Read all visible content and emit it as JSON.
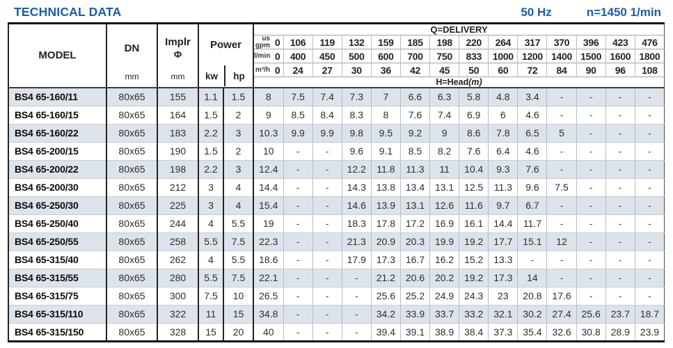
{
  "header": {
    "title": "TECHNICAL DATA",
    "frequency": "50 Hz",
    "speed": "n=1450 1/min"
  },
  "colors": {
    "accent_blue": "#1b5ea9",
    "row_shade": "#dce3ea"
  },
  "table": {
    "delivery_title": "Q=DELIVERY",
    "head_label": "H=Head",
    "head_unit": "(m)",
    "columns": {
      "model": "MODEL",
      "dn": "DN",
      "dn_unit": "mm",
      "implr": "Implr",
      "implr_phi": "Φ",
      "implr_unit": "mm",
      "power": "Power",
      "kw": "kw",
      "hp": "hp"
    },
    "delivery_rows": [
      {
        "unit_lines": [
          "us",
          "gpm"
        ],
        "values": [
          "0",
          "106",
          "119",
          "132",
          "159",
          "185",
          "198",
          "220",
          "264",
          "317",
          "370",
          "396",
          "423",
          "476"
        ]
      },
      {
        "unit_lines": [
          "l/min"
        ],
        "values": [
          "0",
          "400",
          "450",
          "500",
          "600",
          "700",
          "750",
          "833",
          "1000",
          "1200",
          "1400",
          "1500",
          "1600",
          "1800"
        ]
      },
      {
        "unit_lines": [
          "m³/h"
        ],
        "values": [
          "0",
          "24",
          "27",
          "30",
          "36",
          "42",
          "45",
          "50",
          "60",
          "72",
          "84",
          "90",
          "96",
          "108"
        ]
      }
    ],
    "rows": [
      {
        "model": "BS4 65-160/11",
        "dn": "80x65",
        "implr": "155",
        "kw": "1.1",
        "hp": "1.5",
        "head": [
          "8",
          "7.5",
          "7.4",
          "7.3",
          "7",
          "6.6",
          "6.3",
          "5.8",
          "4.8",
          "3.4",
          "-",
          "-",
          "-",
          "-"
        ]
      },
      {
        "model": "BS4 65-160/15",
        "dn": "80x65",
        "implr": "164",
        "kw": "1.5",
        "hp": "2",
        "head": [
          "9",
          "8.5",
          "8.4",
          "8.3",
          "8",
          "7.6",
          "7.4",
          "6.9",
          "6",
          "4.6",
          "-",
          "-",
          "-",
          "-"
        ]
      },
      {
        "model": "BS4 65-160/22",
        "dn": "80x65",
        "implr": "183",
        "kw": "2.2",
        "hp": "3",
        "head": [
          "10.3",
          "9.9",
          "9.9",
          "9.8",
          "9.5",
          "9.2",
          "9",
          "8.6",
          "7.8",
          "6.5",
          "5",
          "-",
          "-",
          "-"
        ]
      },
      {
        "model": "BS4 65-200/15",
        "dn": "80x65",
        "implr": "190",
        "kw": "1.5",
        "hp": "2",
        "head": [
          "10",
          "-",
          "-",
          "9.6",
          "9.1",
          "8.5",
          "8.2",
          "7.6",
          "6.4",
          "4.6",
          "-",
          "-",
          "-",
          "-"
        ]
      },
      {
        "model": "BS4 65-200/22",
        "dn": "80x65",
        "implr": "198",
        "kw": "2.2",
        "hp": "3",
        "head": [
          "12.4",
          "-",
          "-",
          "12.2",
          "11.8",
          "11.3",
          "11",
          "10.4",
          "9.3",
          "7.6",
          "-",
          "-",
          "-",
          "-"
        ]
      },
      {
        "model": "BS4 65-200/30",
        "dn": "80x65",
        "implr": "212",
        "kw": "3",
        "hp": "4",
        "head": [
          "14.4",
          "-",
          "-",
          "14.3",
          "13.8",
          "13.4",
          "13.1",
          "12.5",
          "11.3",
          "9.6",
          "7.5",
          "-",
          "-",
          "-"
        ]
      },
      {
        "model": "BS4 65-250/30",
        "dn": "80x65",
        "implr": "225",
        "kw": "3",
        "hp": "4",
        "head": [
          "15.4",
          "-",
          "-",
          "14.6",
          "13.9",
          "13.1",
          "12.6",
          "11.6",
          "9.7",
          "6.7",
          "-",
          "-",
          "-",
          "-"
        ]
      },
      {
        "model": "BS4 65-250/40",
        "dn": "80x65",
        "implr": "244",
        "kw": "4",
        "hp": "5.5",
        "head": [
          "19",
          "-",
          "-",
          "18.3",
          "17.8",
          "17.2",
          "16.9",
          "16.1",
          "14.4",
          "11.7",
          "-",
          "-",
          "-",
          "-"
        ]
      },
      {
        "model": "BS4 65-250/55",
        "dn": "80x65",
        "implr": "258",
        "kw": "5.5",
        "hp": "7.5",
        "head": [
          "22.3",
          "-",
          "-",
          "21.3",
          "20.9",
          "20.3",
          "19.9",
          "19.2",
          "17.7",
          "15.1",
          "12",
          "-",
          "-",
          "-"
        ]
      },
      {
        "model": "BS4 65-315/40",
        "dn": "80x65",
        "implr": "262",
        "kw": "4",
        "hp": "5.5",
        "head": [
          "18.6",
          "-",
          "-",
          "17.9",
          "17.3",
          "16.7",
          "16.2",
          "15.2",
          "13.3",
          "-",
          "-",
          "-",
          "-",
          "-"
        ]
      },
      {
        "model": "BS4 65-315/55",
        "dn": "80x65",
        "implr": "280",
        "kw": "5.5",
        "hp": "7.5",
        "head": [
          "22.1",
          "-",
          "-",
          "-",
          "21.2",
          "20.6",
          "20.2",
          "19.2",
          "17.3",
          "14",
          "-",
          "-",
          "-",
          "-"
        ]
      },
      {
        "model": "BS4 65-315/75",
        "dn": "80x65",
        "implr": "300",
        "kw": "7.5",
        "hp": "10",
        "head": [
          "26.5",
          "-",
          "-",
          "-",
          "25.6",
          "25.2",
          "24.9",
          "24.3",
          "23",
          "20.8",
          "17.6",
          "-",
          "-",
          "-"
        ]
      },
      {
        "model": "BS4 65-315/110",
        "dn": "80x65",
        "implr": "322",
        "kw": "11",
        "hp": "15",
        "head": [
          "34.8",
          "-",
          "-",
          "-",
          "34.2",
          "33.9",
          "33.7",
          "33.2",
          "32.1",
          "30.2",
          "27.4",
          "25.6",
          "23.7",
          "18.7"
        ]
      },
      {
        "model": "BS4 65-315/150",
        "dn": "80x65",
        "implr": "328",
        "kw": "15",
        "hp": "20",
        "head": [
          "40",
          "-",
          "-",
          "-",
          "39.4",
          "39.1",
          "38.9",
          "38.4",
          "37.3",
          "35.4",
          "32.6",
          "30.8",
          "28.9",
          "23.9"
        ]
      }
    ]
  }
}
